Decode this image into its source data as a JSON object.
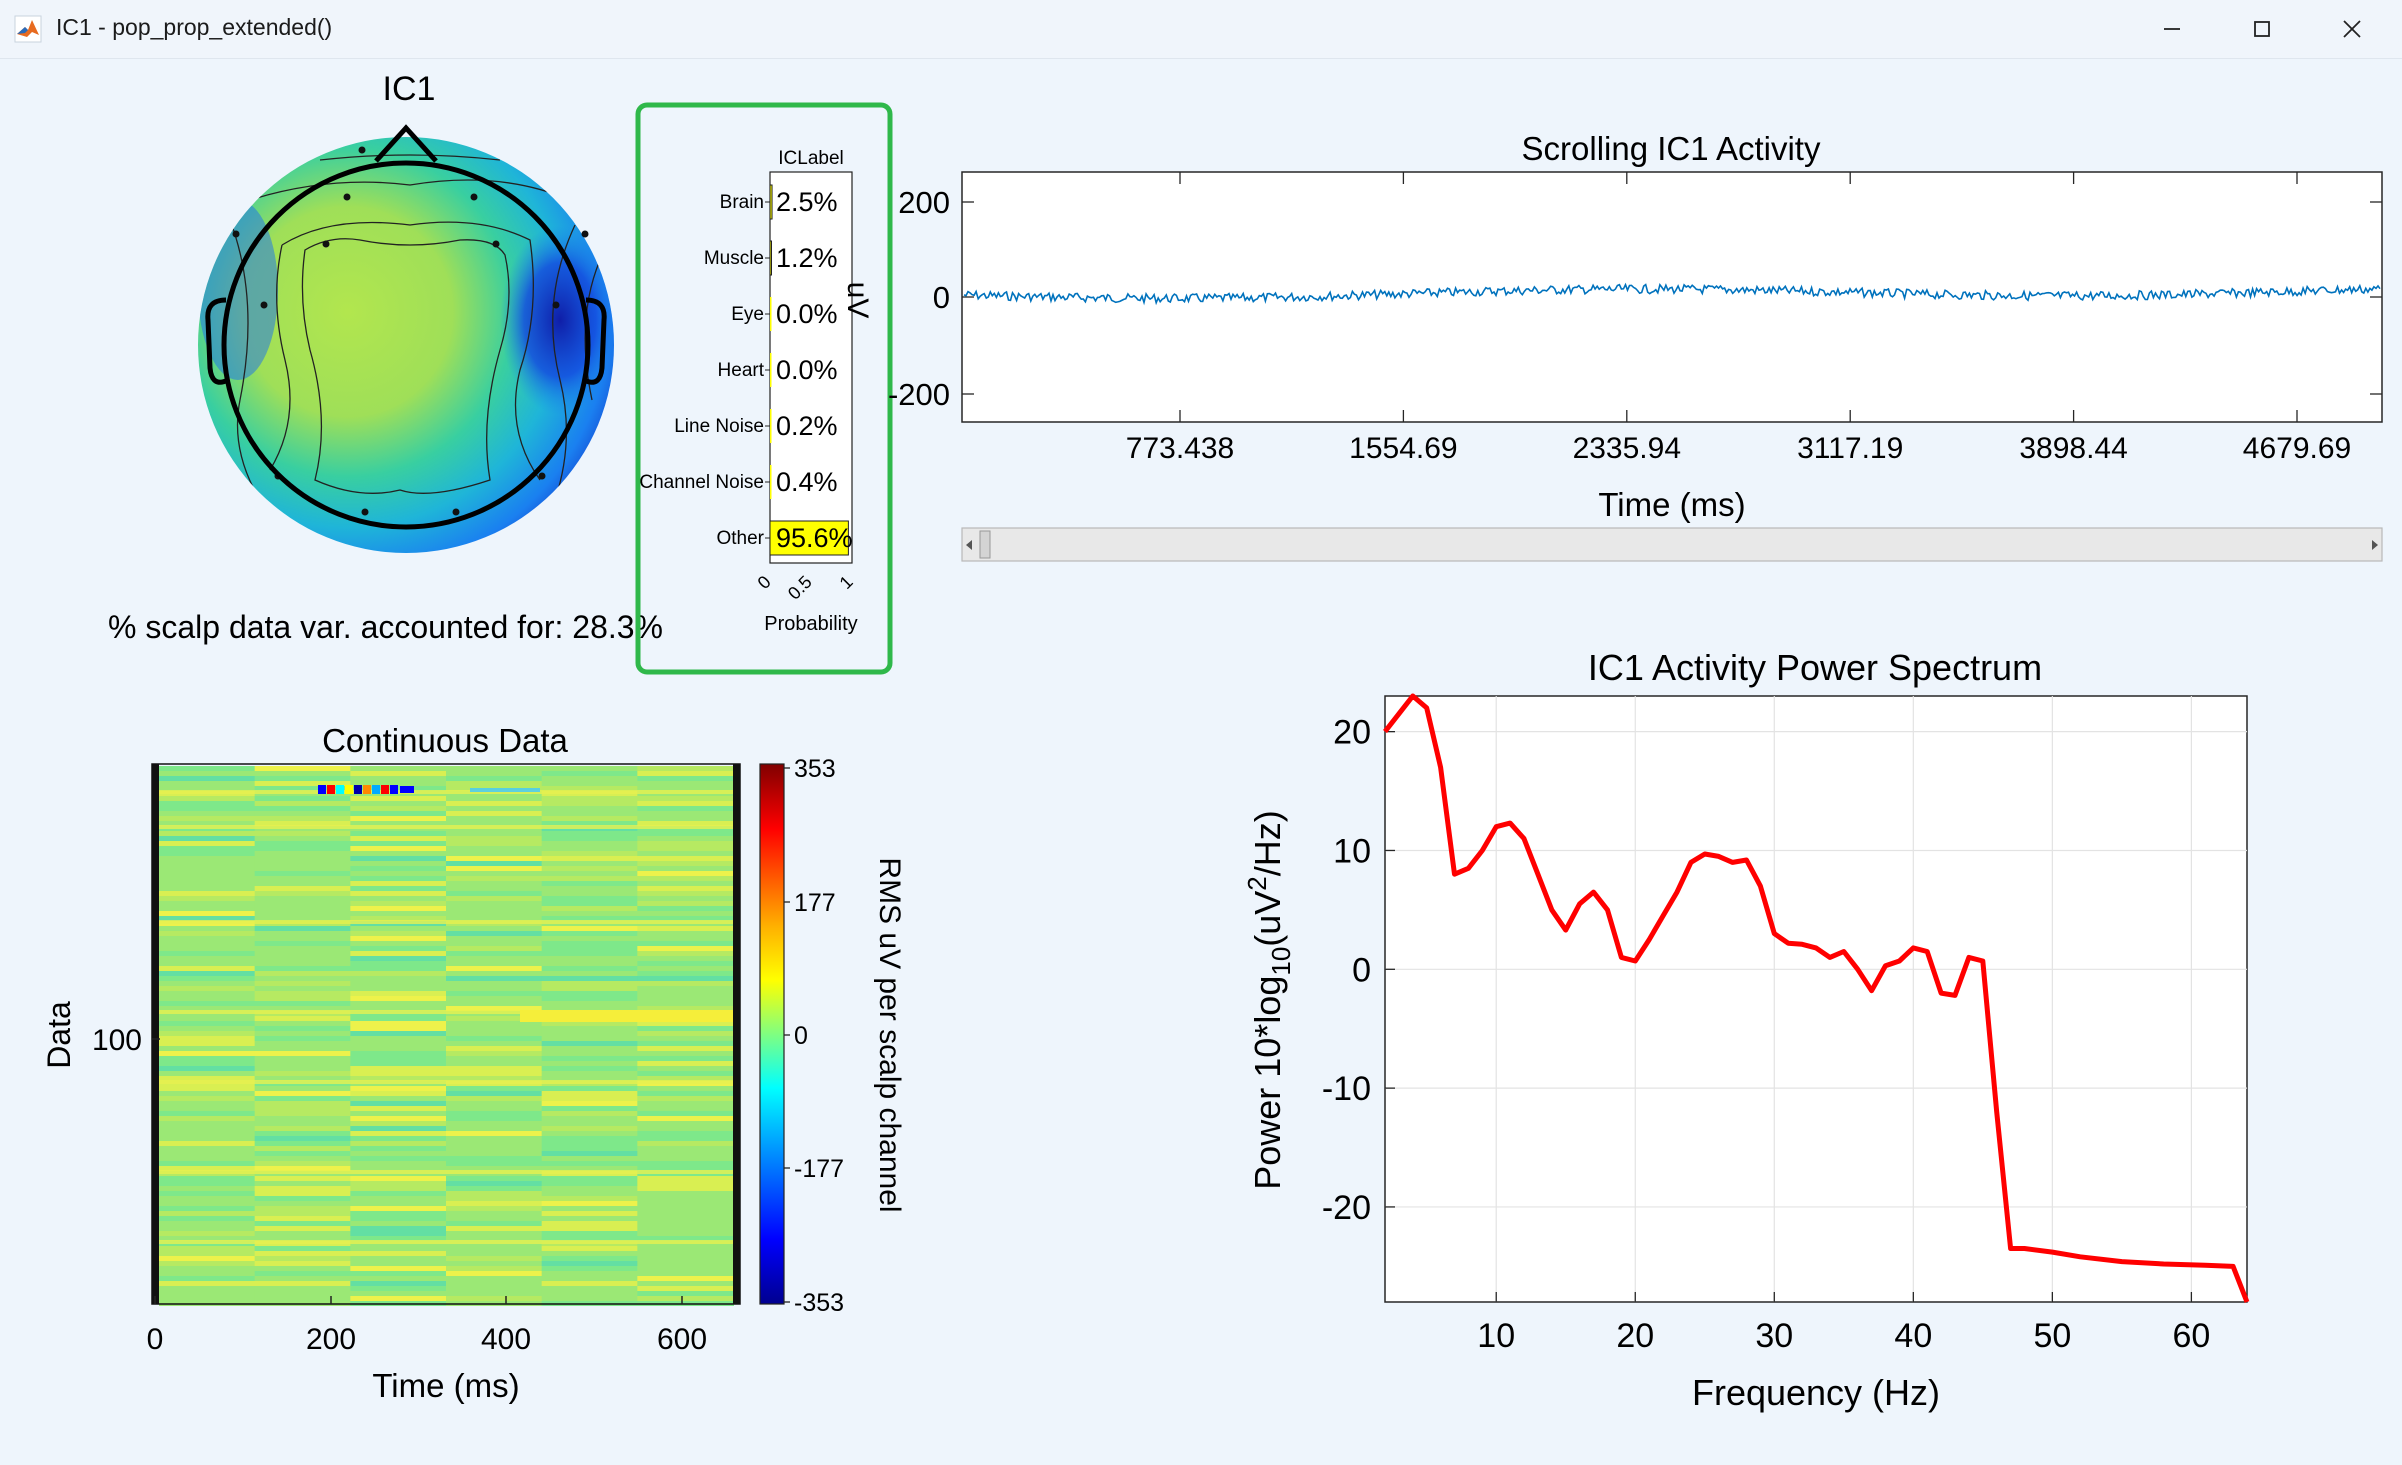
{
  "window": {
    "title": "IC1 - pop_prop_extended()",
    "app_icon": "matlab-logo-icon",
    "controls": [
      "minimize-icon",
      "maximize-icon",
      "close-icon"
    ]
  },
  "topoplot": {
    "title": "IC1",
    "variance_text": "% scalp data var. accounted for: 28.3%"
  },
  "iclabel": {
    "title": "ICLabel",
    "categories": [
      "Brain",
      "Muscle",
      "Eye",
      "Heart",
      "Line Noise",
      "Channel Noise",
      "Other"
    ],
    "percent_labels": [
      "2.5%",
      "1.2%",
      "0.0%",
      "0.0%",
      "0.2%",
      "0.4%",
      "95.6%"
    ],
    "probabilities": [
      0.025,
      0.012,
      0.0,
      0.0,
      0.002,
      0.004,
      0.956
    ],
    "x_ticks": [
      "0",
      "0.5",
      "1"
    ],
    "xlabel": "Probability",
    "highlight_color": "#ffff00",
    "frame_color": "#2fb84a"
  },
  "scroll_panel": {
    "title": "Scrolling IC1 Activity",
    "ylabel": "uV",
    "xlabel": "Time (ms)",
    "y_ticks": [
      "200",
      "0",
      "-200"
    ],
    "x_ticks": [
      "773.438",
      "1554.69",
      "2335.94",
      "3117.19",
      "3898.44",
      "4679.69"
    ],
    "line_color": "#0072bd"
  },
  "erpimage": {
    "title": "Continuous Data",
    "ylabel": "Data",
    "xlabel": "Time (ms)",
    "y_ticks": [
      "100"
    ],
    "x_ticks": [
      "0",
      "200",
      "400",
      "600"
    ],
    "colorbar_ticks": [
      "353",
      "177",
      "0",
      "-177",
      "-353"
    ],
    "colorbar_label": "RMS uV per scalp channel"
  },
  "chart_data": {
    "type": "line",
    "title": "IC1 Activity Power Spectrum",
    "xlabel": "Frequency (Hz)",
    "ylabel_prefix": "Power 10*log",
    "ylabel_sub": "10",
    "ylabel_mid": "(uV",
    "ylabel_sup": "2",
    "ylabel_suffix": "/Hz)",
    "xlim": [
      2,
      64
    ],
    "ylim": [
      -28,
      23
    ],
    "x_ticks": [
      10,
      20,
      30,
      40,
      50,
      60
    ],
    "y_ticks": [
      20,
      10,
      0,
      -10,
      -20
    ],
    "grid": true,
    "line_color": "#ff0000",
    "x": [
      2,
      3,
      4,
      5,
      6,
      7,
      8,
      9,
      10,
      11,
      12,
      13,
      14,
      15,
      16,
      17,
      18,
      19,
      20,
      21,
      22,
      23,
      24,
      25,
      26,
      27,
      28,
      29,
      30,
      31,
      32,
      33,
      34,
      35,
      36,
      37,
      38,
      39,
      40,
      41,
      42,
      43,
      44,
      45,
      46,
      47,
      48,
      50,
      52,
      55,
      58,
      61,
      63,
      64
    ],
    "y": [
      20,
      21.5,
      23,
      22,
      17,
      8,
      8.5,
      10,
      12,
      12.3,
      11,
      8,
      5,
      3.3,
      5.5,
      6.5,
      5,
      1,
      0.7,
      2.5,
      4.5,
      6.5,
      9,
      9.7,
      9.5,
      9,
      9.2,
      7,
      3,
      2.2,
      2.1,
      1.8,
      1,
      1.5,
      0,
      -1.8,
      0.3,
      0.7,
      1.8,
      1.5,
      -2,
      -2.2,
      1,
      0.7,
      -12,
      -23.5,
      -23.5,
      -23.8,
      -24.2,
      -24.6,
      -24.8,
      -24.9,
      -25,
      -28
    ]
  }
}
